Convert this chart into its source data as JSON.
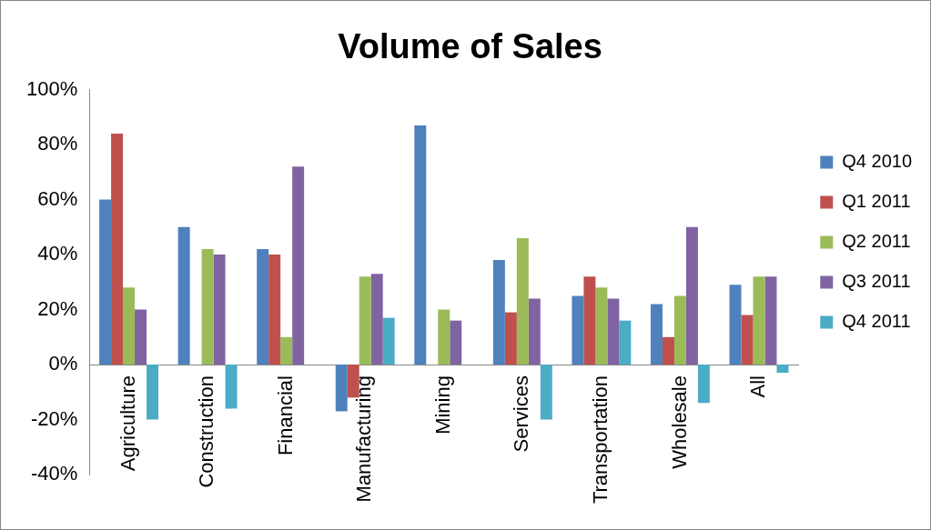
{
  "chart_data": {
    "type": "bar",
    "title": "Volume of Sales",
    "categories": [
      "Agriculture",
      "Construction",
      "Financial",
      "Manufacturing",
      "Mining",
      "Services",
      "Transportation",
      "Wholesale",
      "All"
    ],
    "series": [
      {
        "name": "Q4 2010",
        "color": "#4f81bd",
        "values": [
          60,
          50,
          42,
          -17,
          87,
          38,
          25,
          22,
          29
        ]
      },
      {
        "name": "Q1 2011",
        "color": "#c0504d",
        "values": [
          84,
          null,
          40,
          -12,
          null,
          19,
          32,
          10,
          18
        ]
      },
      {
        "name": "Q2 2011",
        "color": "#9bbb59",
        "values": [
          28,
          42,
          10,
          32,
          20,
          46,
          28,
          25,
          32
        ]
      },
      {
        "name": "Q3 2011",
        "color": "#8064a2",
        "values": [
          20,
          40,
          72,
          33,
          16,
          24,
          24,
          50,
          32
        ]
      },
      {
        "name": "Q4 2011",
        "color": "#4bacc6",
        "values": [
          -20,
          -16,
          null,
          17,
          null,
          -20,
          16,
          -14,
          -3
        ]
      }
    ],
    "ylim": [
      -40,
      100
    ],
    "yticks": [
      {
        "value": -40,
        "label": "-40%"
      },
      {
        "value": -20,
        "label": "-20%"
      },
      {
        "value": 0,
        "label": "0%"
      },
      {
        "value": 20,
        "label": "20%"
      },
      {
        "value": 40,
        "label": "40%"
      },
      {
        "value": 60,
        "label": "60%"
      },
      {
        "value": 80,
        "label": "80%"
      },
      {
        "value": 100,
        "label": "100%"
      }
    ],
    "grid": false,
    "legend": "right"
  }
}
